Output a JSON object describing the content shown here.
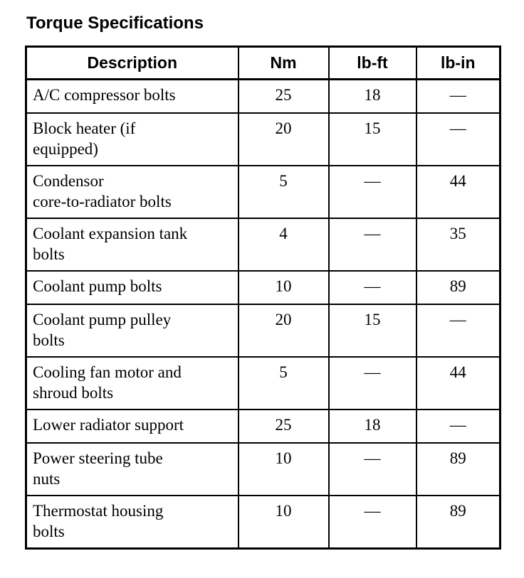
{
  "title": "Torque Specifications",
  "table": {
    "headers": {
      "description": "Description",
      "nm": "Nm",
      "lbft": "lb-ft",
      "lbin": "lb-in"
    },
    "rows": [
      {
        "description": "A/C compressor bolts",
        "nm": "25",
        "lbft": "18",
        "lbin": "—"
      },
      {
        "description": "Block heater (if\nequipped)",
        "nm": "20",
        "lbft": "15",
        "lbin": "—"
      },
      {
        "description": "Condensor\ncore-to-radiator bolts",
        "nm": "5",
        "lbft": "—",
        "lbin": "44"
      },
      {
        "description": "Coolant expansion tank\nbolts",
        "nm": "4",
        "lbft": "—",
        "lbin": "35"
      },
      {
        "description": "Coolant pump bolts",
        "nm": "10",
        "lbft": "—",
        "lbin": "89"
      },
      {
        "description": "Coolant pump pulley\nbolts",
        "nm": "20",
        "lbft": "15",
        "lbin": "—"
      },
      {
        "description": "Cooling fan motor and\nshroud bolts",
        "nm": "5",
        "lbft": "—",
        "lbin": "44"
      },
      {
        "description": "Lower radiator support",
        "nm": "25",
        "lbft": "18",
        "lbin": "—"
      },
      {
        "description": "Power steering tube\nnuts",
        "nm": "10",
        "lbft": "—",
        "lbin": "89"
      },
      {
        "description": "Thermostat housing\nbolts",
        "nm": "10",
        "lbft": "—",
        "lbin": "89"
      }
    ]
  }
}
